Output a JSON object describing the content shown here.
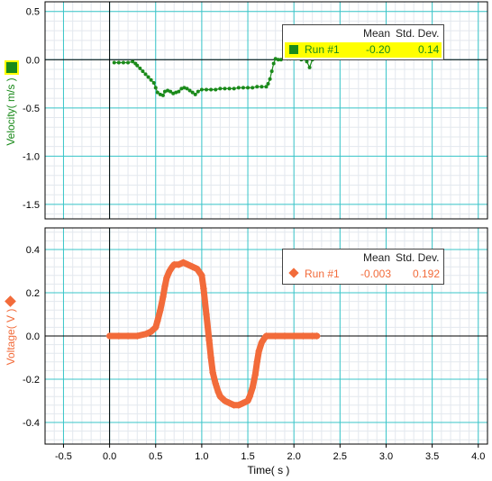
{
  "colors": {
    "velocity": "#1a8a1a",
    "voltage": "#f26b3a",
    "grid_major": "#38c6c9",
    "grid_minor": "#e3e8ee",
    "axis": "#000000",
    "legend_highlight": "#ffff00"
  },
  "xaxis": {
    "label": "Time( s )"
  },
  "velocity_panel": {
    "ylabel": "Velocity( m/s )",
    "legend": {
      "mean_header": "Mean",
      "std_header": "Std. Dev.",
      "run": "Run #1",
      "mean": "-0.20",
      "std": "0.14"
    }
  },
  "voltage_panel": {
    "ylabel": "Voltage( V )",
    "legend": {
      "mean_header": "Mean",
      "std_header": "Std. Dev.",
      "run": "Run #1",
      "mean": "-0.003",
      "std": "0.192"
    }
  },
  "chart_data": [
    {
      "type": "scatter",
      "ylabel": "Velocity( m/s )",
      "xlabel": "",
      "xlim": [
        -0.7,
        4.1
      ],
      "ylim": [
        -1.65,
        0.6
      ],
      "xticks": [
        -0.5,
        0.0,
        0.5,
        1.0,
        1.5,
        2.0,
        2.5,
        3.0,
        3.5,
        4.0
      ],
      "yticks": [
        0.5,
        0.0,
        -0.5,
        -1.0,
        -1.5
      ],
      "xtick_labels": [
        "-0.5",
        "0.0",
        "0.5",
        "1.0",
        "1.5",
        "2.0",
        "2.5",
        "3.0",
        "3.5",
        "4.0"
      ],
      "ytick_labels": [
        "0.5",
        "0.0",
        "-0.5",
        "-1.0",
        "-1.5"
      ],
      "grid": true,
      "series": [
        {
          "name": "Run #1",
          "x": [
            0.05,
            0.1,
            0.15,
            0.2,
            0.25,
            0.28,
            0.3,
            0.33,
            0.36,
            0.39,
            0.42,
            0.45,
            0.48,
            0.5,
            0.52,
            0.55,
            0.58,
            0.6,
            0.63,
            0.66,
            0.69,
            0.72,
            0.75,
            0.78,
            0.81,
            0.84,
            0.87,
            0.9,
            0.93,
            0.96,
            1.0,
            1.05,
            1.1,
            1.15,
            1.2,
            1.25,
            1.3,
            1.35,
            1.4,
            1.45,
            1.5,
            1.55,
            1.6,
            1.65,
            1.7,
            1.72,
            1.74,
            1.76,
            1.78,
            1.8,
            1.83,
            1.86,
            1.9,
            1.93,
            1.96,
            1.99,
            2.02,
            2.05,
            2.08,
            2.11,
            2.14,
            2.17,
            2.2,
            2.23
          ],
          "values": [
            -0.03,
            -0.03,
            -0.03,
            -0.03,
            -0.02,
            -0.04,
            -0.06,
            -0.09,
            -0.12,
            -0.15,
            -0.18,
            -0.21,
            -0.24,
            -0.29,
            -0.34,
            -0.36,
            -0.37,
            -0.33,
            -0.32,
            -0.33,
            -0.35,
            -0.34,
            -0.33,
            -0.3,
            -0.29,
            -0.3,
            -0.32,
            -0.34,
            -0.36,
            -0.33,
            -0.31,
            -0.31,
            -0.31,
            -0.31,
            -0.3,
            -0.3,
            -0.3,
            -0.3,
            -0.29,
            -0.29,
            -0.29,
            -0.29,
            -0.28,
            -0.28,
            -0.28,
            -0.25,
            -0.2,
            -0.12,
            -0.04,
            0.01,
            0.0,
            0.0,
            0.02,
            0.01,
            0.01,
            0.02,
            0.01,
            0.02,
            0.0,
            0.01,
            -0.02,
            -0.08,
            0.0,
            0.02
          ]
        }
      ]
    },
    {
      "type": "scatter",
      "ylabel": "Voltage( V )",
      "xlabel": "Time( s )",
      "xlim": [
        -0.7,
        4.1
      ],
      "ylim": [
        -0.5,
        0.5
      ],
      "xticks": [
        -0.5,
        0.0,
        0.5,
        1.0,
        1.5,
        2.0,
        2.5,
        3.0,
        3.5,
        4.0
      ],
      "yticks": [
        0.4,
        0.2,
        0.0,
        -0.2,
        -0.4
      ],
      "xtick_labels": [
        "-0.5",
        "0.0",
        "0.5",
        "1.0",
        "1.5",
        "2.0",
        "2.5",
        "3.0",
        "3.5",
        "4.0"
      ],
      "ytick_labels": [
        "0.4",
        "0.2",
        "0.0",
        "-0.2",
        "-0.4"
      ],
      "grid": true,
      "series": [
        {
          "name": "Run #1",
          "x": [
            0.0,
            0.1,
            0.2,
            0.3,
            0.4,
            0.45,
            0.5,
            0.52,
            0.55,
            0.58,
            0.6,
            0.62,
            0.65,
            0.68,
            0.7,
            0.75,
            0.8,
            0.85,
            0.9,
            0.95,
            1.0,
            1.02,
            1.05,
            1.08,
            1.1,
            1.12,
            1.15,
            1.18,
            1.2,
            1.25,
            1.3,
            1.35,
            1.4,
            1.45,
            1.5,
            1.52,
            1.55,
            1.58,
            1.6,
            1.62,
            1.65,
            1.68,
            1.7,
            1.8,
            1.9,
            2.0,
            2.1,
            2.2,
            2.25
          ],
          "values": [
            0.0,
            0.0,
            0.0,
            0.0,
            0.01,
            0.02,
            0.04,
            0.07,
            0.12,
            0.18,
            0.23,
            0.27,
            0.3,
            0.32,
            0.33,
            0.33,
            0.34,
            0.33,
            0.32,
            0.31,
            0.28,
            0.22,
            0.1,
            -0.02,
            -0.1,
            -0.17,
            -0.22,
            -0.26,
            -0.28,
            -0.3,
            -0.31,
            -0.32,
            -0.32,
            -0.31,
            -0.3,
            -0.28,
            -0.24,
            -0.18,
            -0.12,
            -0.07,
            -0.03,
            -0.01,
            0.0,
            0.0,
            0.0,
            0.0,
            0.0,
            0.0,
            0.0
          ]
        }
      ]
    }
  ]
}
